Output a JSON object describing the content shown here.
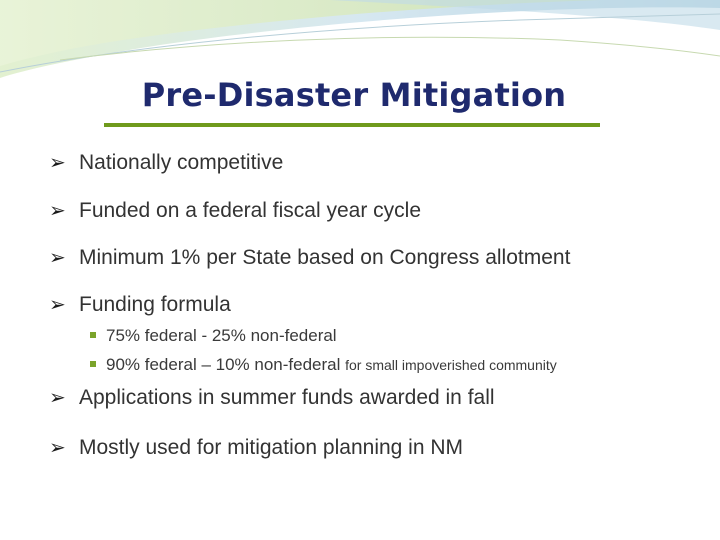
{
  "slide": {
    "title": "Pre-Disaster Mitigation",
    "accent_color": "#6f9a1c",
    "title_color": "#1f2a6e",
    "bullets": [
      {
        "icon": "arrow-bullet-icon",
        "text": "Nationally competitive"
      },
      {
        "icon": "arrow-bullet-icon",
        "text": "Funded on a federal fiscal year cycle"
      },
      {
        "icon": "arrow-bullet-icon",
        "text": "Minimum 1% per State based on Congress allotment"
      },
      {
        "icon": "arrow-bullet-icon",
        "text": "Funding formula"
      },
      {
        "icon": "arrow-bullet-icon",
        "text": "Applications in summer funds awarded in fall"
      },
      {
        "icon": "arrow-bullet-icon",
        "text": "Mostly used for mitigation planning in NM"
      }
    ],
    "sub_bullets": [
      {
        "icon": "square-bullet-icon",
        "text": "75% federal - 25% non-federal",
        "note": ""
      },
      {
        "icon": "square-bullet-icon",
        "text": "90% federal – 10% non-federal",
        "note": "for small impoverished community"
      }
    ]
  }
}
